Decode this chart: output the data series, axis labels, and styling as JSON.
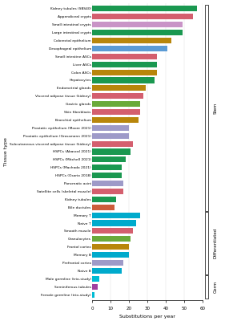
{
  "categories": [
    "Kidney tubules (SBS40)",
    "Appendiceal crypts",
    "Small intestinal crypts",
    "Large intestinal crypts",
    "Colorectal epithelium",
    "Desophageal epithelium",
    "Small intestine ASCs",
    "Liver ASCs",
    "Colon ASCs",
    "Hepatocytes",
    "Endometrial glands",
    "Visceral adipose tissue (kidney)",
    "Gastric glands",
    "Skin fibroblasts",
    "Bronchial epithelium",
    "Prostatic epithelium (Moore 2021)",
    "Prostatic epithelium (Grossmann 2021)",
    "Subcutaneous visceral adipose tissue (kidney)",
    "HSPCs (Abascal 2021)",
    "HSPCs (Mitchell 2021)",
    "HSPCs (Machado 2021)",
    "HSPCs (Osorio 2018)",
    "Pancreatic acini",
    "Satellite cells (skeletal muscle)",
    "Kidney tubules",
    "Bile ductules",
    "Memory T",
    "Naive T",
    "Smooth muscle",
    "Granulocytes",
    "Frontal cortex",
    "Memory B",
    "Prefrontal cortex",
    "Naive B",
    "Male germline (trio-study)",
    "Seminiferous tubules",
    "Female germline (trio-study)"
  ],
  "values": [
    57,
    55,
    49,
    49,
    43,
    41,
    35,
    35,
    35,
    34,
    29,
    28,
    26,
    26,
    25,
    20,
    20,
    22,
    21,
    18,
    16,
    16,
    17,
    17,
    13,
    12,
    26,
    24,
    22,
    21,
    20,
    20,
    17,
    16,
    4,
    3,
    1
  ],
  "colors": [
    "#1a9850",
    "#d45f6e",
    "#c994c7",
    "#1a9850",
    "#b8860b",
    "#5b9bd5",
    "#d45f6e",
    "#1a9850",
    "#b8860b",
    "#1a9850",
    "#b8860b",
    "#d45f6e",
    "#6aaa3a",
    "#d45f6e",
    "#b8860b",
    "#9e9ac8",
    "#9e9ac8",
    "#d45f6e",
    "#1a9850",
    "#1a9850",
    "#1a9850",
    "#1a9850",
    "#9e9ac8",
    "#d45f6e",
    "#1a9850",
    "#cd5c3a",
    "#00aacc",
    "#00aacc",
    "#d45f6e",
    "#6aaa3a",
    "#b8860b",
    "#00aacc",
    "#9e9ac8",
    "#00aacc",
    "#00bcd4",
    "#a040a0",
    "#00bcd4"
  ],
  "group_labels": [
    "Stem",
    "Differentiated",
    "Germ"
  ],
  "group_row_ranges": [
    [
      0,
      25
    ],
    [
      26,
      33
    ],
    [
      34,
      36
    ]
  ],
  "xlabel": "Substitutions per year",
  "ylabel": "Tissue type",
  "xlim": [
    0,
    60
  ]
}
